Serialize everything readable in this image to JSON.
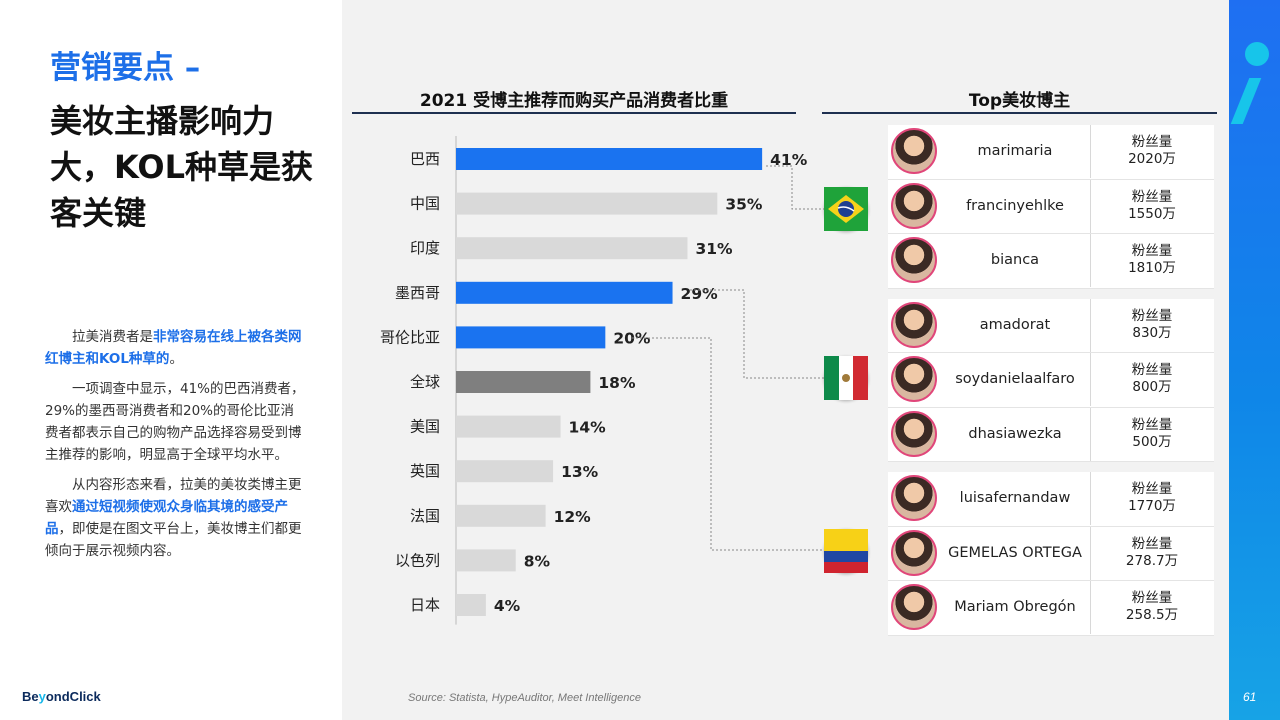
{
  "left": {
    "subtitle": "营销要点 –",
    "headline": "美妆主播影响力大，KOL种草是获客关键",
    "p1_a": "拉美消费者是",
    "p1_b": "非常容易在线上被各类网红博主和KOL种草的",
    "p1_c": "。",
    "p2": "一项调查中显示，41%的巴西消费者，29%的墨西哥消费者和20%的哥伦比亚消费者都表示自己的购物产品选择容易受到博主推荐的影响，明显高于全球平均水平。",
    "p3_a": "从内容形态来看，拉美的美妆类博主更喜欢",
    "p3_b": "通过短视频使观众身临其境的感受产品",
    "p3_c": "，即使是在图文平台上，美妆博主们都更倾向于展示视频内容。",
    "logo_a": "Be",
    "logo_b": "y",
    "logo_c": "ondClick"
  },
  "chart_data": {
    "type": "bar",
    "orientation": "horizontal",
    "title": "2021 受博主推荐而购买产品消费者比重",
    "categories": [
      "巴西",
      "中国",
      "印度",
      "墨西哥",
      "哥伦比亚",
      "全球",
      "美国",
      "英国",
      "法国",
      "以色列",
      "日本"
    ],
    "values": [
      41,
      35,
      31,
      29,
      20,
      18,
      14,
      13,
      12,
      8,
      4
    ],
    "labels": [
      "41%",
      "35%",
      "31%",
      "29%",
      "20%",
      "18%",
      "14%",
      "13%",
      "12%",
      "8%",
      "4%"
    ],
    "bar_colors": [
      "#1a73f0",
      "#d9d9d9",
      "#d9d9d9",
      "#1a73f0",
      "#1a73f0",
      "#7f7f7f",
      "#d9d9d9",
      "#d9d9d9",
      "#d9d9d9",
      "#d9d9d9",
      "#d9d9d9"
    ],
    "xlim": [
      0,
      45
    ]
  },
  "kol": {
    "title": "Top美妆博主",
    "fans_label": "粉丝量",
    "items": [
      {
        "name": "marimaria",
        "fans": "2020万"
      },
      {
        "name": "francinyehlke",
        "fans": "1550万"
      },
      {
        "name": "bianca",
        "fans": "1810万"
      },
      {
        "name": "amadorat",
        "fans": "830万"
      },
      {
        "name": "soydanielaalfaro",
        "fans": "800万"
      },
      {
        "name": "dhasiawezka",
        "fans": "500万"
      },
      {
        "name": "luisafernandaw",
        "fans": "1770万"
      },
      {
        "name": "GEMELAS ORTEGA",
        "fans": "278.7万"
      },
      {
        "name": "Mariam Obregón",
        "fans": "258.5万"
      }
    ]
  },
  "source": "Source: Statista, HypeAuditor, Meet Intelligence",
  "page_number": "61"
}
